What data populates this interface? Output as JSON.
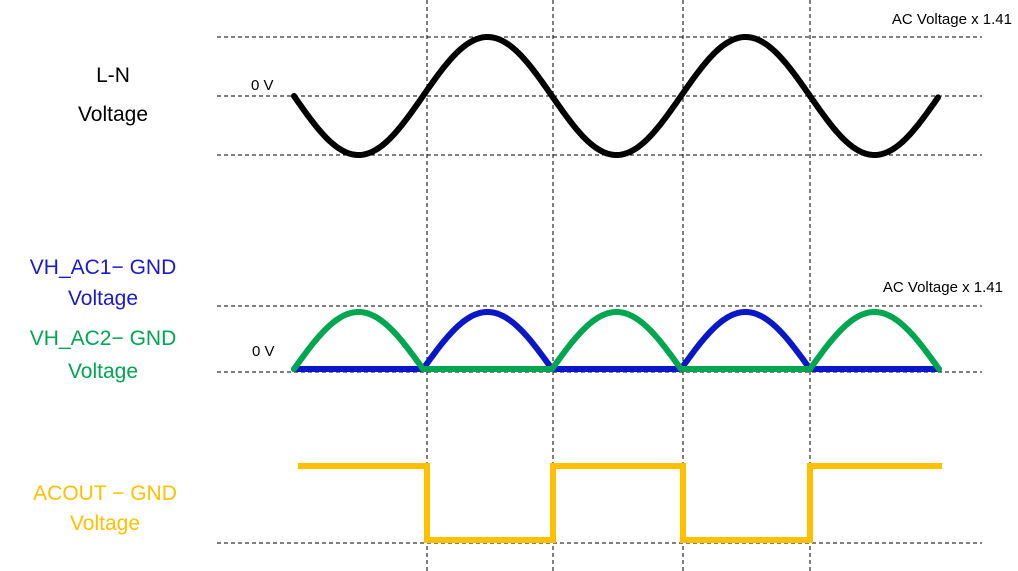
{
  "labels": {
    "ln_title_line1": "L-N",
    "ln_title_line2": "Voltage",
    "ln_zero": "0 V",
    "ln_peak": "AC Voltage x 1.41",
    "vh1_title_line1": "VH_AC1− GND",
    "vh1_title_line2": "Voltage",
    "vh2_title_line1": "VH_AC2− GND",
    "vh2_title_line2": "Voltage",
    "vh_zero": "0 V",
    "vh_peak": "AC Voltage x 1.41",
    "acout_title_line1": "ACOUT − GND",
    "acout_title_line2": "Voltage"
  },
  "colors": {
    "ln_wave": "#000000",
    "vh_ac1": "#0a17c8",
    "vh_ac2": "#00a650",
    "acout": "#ffc000",
    "vh_ac1_label": "#1a1acc",
    "vh_ac2_label": "#00a650",
    "acout_label": "#ffc000",
    "dashed_lines": "#000000"
  }
}
